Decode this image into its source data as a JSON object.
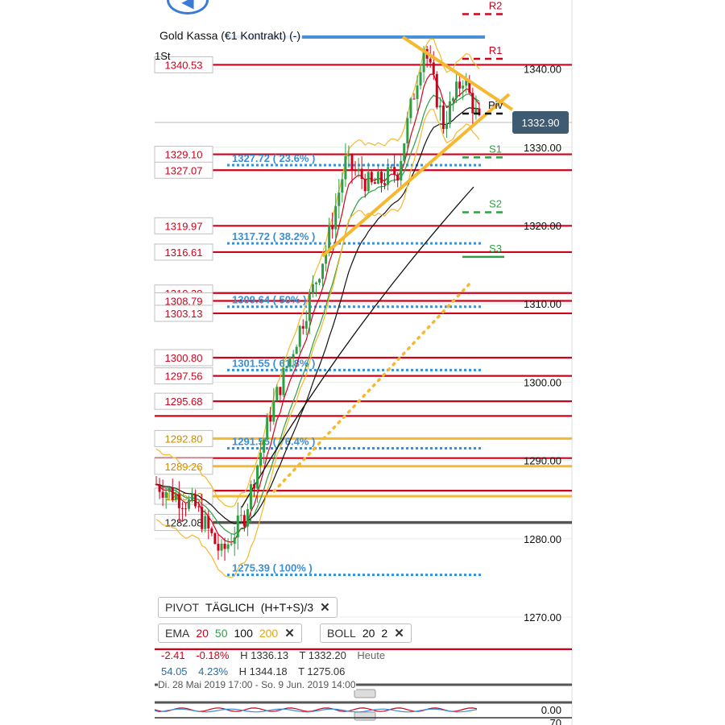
{
  "header": {
    "title": "Gold Kassa (€1 Kontrakt) (-)",
    "timeframe": "1St",
    "last_price": "1332.90"
  },
  "indicators": {
    "pivot_pill": {
      "name": "PIVOT",
      "mode": "TÄGLICH",
      "formula": "(H+T+S)/3"
    },
    "ema_pill": {
      "name": "EMA",
      "p20": "20",
      "p50": "50",
      "p100": "100",
      "p200": "200"
    },
    "boll_pill": {
      "name": "BOLL",
      "period": "20",
      "dev": "2"
    }
  },
  "stats": {
    "row1": {
      "change": "-2.41",
      "change_pct": "-0.18%",
      "high": "H 1336.13",
      "low": "T 1332.20",
      "period": "Heute"
    },
    "row2": {
      "change": "54.05",
      "change_pct": "4.23%",
      "high": "H 1344.18",
      "low": "T 1275.06"
    }
  },
  "date_range": "Di. 28 Mai 2019 17:00 - So. 9 Jun. 2019 14:00",
  "colors": {
    "red_level": "#d0021b",
    "fib_blue": "#3b8fd6",
    "gold": "#f5b82e",
    "green": "#2f9e44",
    "black": "#111111",
    "price_badge": "#3f5a73"
  },
  "chart_data": {
    "type": "candlestick",
    "price_axis": {
      "ticks": [
        1340,
        1330,
        1320,
        1310,
        1300,
        1290,
        1280,
        1270
      ],
      "tick_labels": [
        "1340.00",
        "1330.00",
        "1320.00",
        "1310.00",
        "1300.00",
        "1290.00",
        "1280.00",
        "1270.00"
      ]
    },
    "red_levels": [
      1340.53,
      1329.1,
      1327.07,
      1319.97,
      1316.61,
      1311.38,
      1310.38,
      1308.79,
      1303.13,
      1300.8,
      1297.56,
      1295.68,
      1290.3,
      1286.14,
      1265.9
    ],
    "red_level_labels": [
      "1340.53",
      "1329.10",
      "1327.07",
      "1319.97",
      "1316.61",
      "1310.38",
      "1308.79",
      "1303.13",
      "1300.80",
      "1297.56",
      "1295.68"
    ],
    "gold_levels": [
      1292.8,
      1289.26,
      1285.43
    ],
    "gold_level_labels": [
      "1292.80",
      "1289.26",
      "1285.43"
    ],
    "dark_levels": [
      1282.08
    ],
    "dark_level_labels": [
      "1282.08"
    ],
    "fib_levels": [
      {
        "price": 1327.72,
        "label": "1327.72 ( 23.6% )"
      },
      {
        "price": 1317.72,
        "label": "1317.72 ( 38.2% )"
      },
      {
        "price": 1309.64,
        "label": "1309.64 ( 50% )"
      },
      {
        "price": 1301.55,
        "label": "1301.55 ( 61.8% )"
      },
      {
        "price": 1291.55,
        "label": "1291.55 ( 76.4% )"
      },
      {
        "price": 1275.39,
        "label": "1275.39 ( 100% )"
      }
    ],
    "pivots": [
      {
        "name": "R2",
        "price": 1347.0
      },
      {
        "name": "R1",
        "price": 1341.3
      },
      {
        "name": "Piv",
        "price": 1334.3
      },
      {
        "name": "S1",
        "price": 1328.7
      },
      {
        "name": "S2",
        "price": 1321.7
      },
      {
        "name": "S3",
        "price": 1316.0
      }
    ],
    "oscillator_ticks": [
      "0.00",
      "70"
    ]
  }
}
